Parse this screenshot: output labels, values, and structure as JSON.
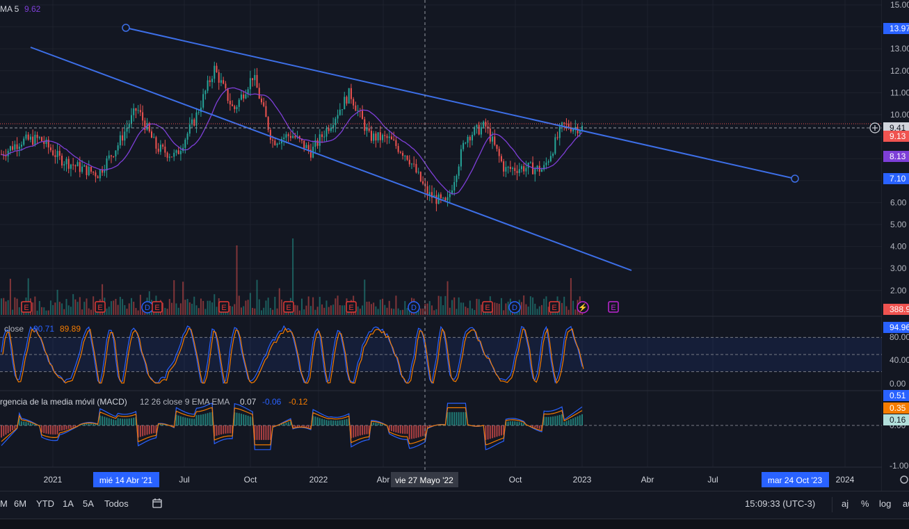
{
  "colors": {
    "bg": "#131722",
    "grid": "#1e222d",
    "text": "#d1d4dc",
    "blue": "#2962ff",
    "line": "#3d6fe8",
    "ma": "#7e3fd8",
    "up": "#26a69a",
    "down": "#ef5350",
    "orange": "#f57c00",
    "event_red": "#e53935",
    "event_blue": "#2962ff",
    "event_purple": "#c026d3"
  },
  "legend": {
    "ma_label": "MA 5",
    "ma_value": "9.62",
    "stoch_label": "close",
    "stoch_k": "90.71",
    "stoch_d": "89.89",
    "macd_label": "rgencia de la media móvil (MACD)",
    "macd_params": "12 26 close 9 EMA EMA",
    "macd_v1": "0.07",
    "macd_v2": "-0.06",
    "macd_v3": "-0.12"
  },
  "price_axis": {
    "ticks": [
      "15.00",
      "14.00",
      "13.00",
      "12.00",
      "11.00",
      "10.00",
      "9.00",
      "8.00",
      "7.00",
      "6.00",
      "5.00",
      "4.00",
      "3.00",
      "2.00"
    ],
    "labels": [
      {
        "text": "13.97",
        "color": "#2962ff"
      },
      {
        "text": "9.41",
        "color": "#131722"
      },
      {
        "text": "9.13",
        "color": "#ef5350"
      },
      {
        "text": "8.13",
        "color": "#7e3fd8"
      },
      {
        "text": "7.10",
        "color": "#2962ff"
      },
      {
        "text": "388.9",
        "color": "#ef5350"
      }
    ]
  },
  "stoch_axis": {
    "ticks": [
      "80.00",
      "40.00",
      "0.00"
    ],
    "label": "94.96"
  },
  "macd_axis": {
    "ticks": [
      "0.00",
      "-1.00"
    ],
    "labels": [
      {
        "text": "0.51",
        "color": "#2962ff"
      },
      {
        "text": "0.35",
        "color": "#f57c00"
      },
      {
        "text": "0.16",
        "color": "#b2dfdb"
      }
    ]
  },
  "time_axis": {
    "ticks": [
      "2021",
      "Jul",
      "Oct",
      "2022",
      "Abr",
      "Oct",
      "2023",
      "Abr",
      "Jul",
      "2024"
    ],
    "label_start": "mié 14 Abr '21",
    "label_cross": "vie 27 Mayo '22",
    "label_end": "mar 24 Oct '23"
  },
  "events": [
    "E",
    "E",
    "D",
    "E",
    "E",
    "E",
    "E",
    "D",
    "E",
    "D",
    "E",
    "⚡",
    "E"
  ],
  "bottom": {
    "ranges": [
      "M",
      "6M",
      "YTD",
      "1A",
      "5A",
      "Todos"
    ],
    "time": "15:09:33 (UTC-3)",
    "aj": "aj",
    "pct": "%",
    "log": "log",
    "au": "au"
  },
  "chart_data": {
    "type": "line",
    "series": [
      {
        "values": [
          8.2,
          8.8,
          8.9,
          8.0,
          7.6,
          7.3,
          8.6,
          10.3,
          8.5,
          8.1,
          9.8,
          12.1,
          10.2,
          11.8,
          8.8,
          9.1,
          8.3,
          9.6,
          11.0,
          9.0,
          8.9,
          8.1,
          6.4,
          5.9,
          9.0,
          9.5,
          7.5,
          7.6,
          7.5,
          9.5,
          9.4
        ]
      }
    ]
  }
}
